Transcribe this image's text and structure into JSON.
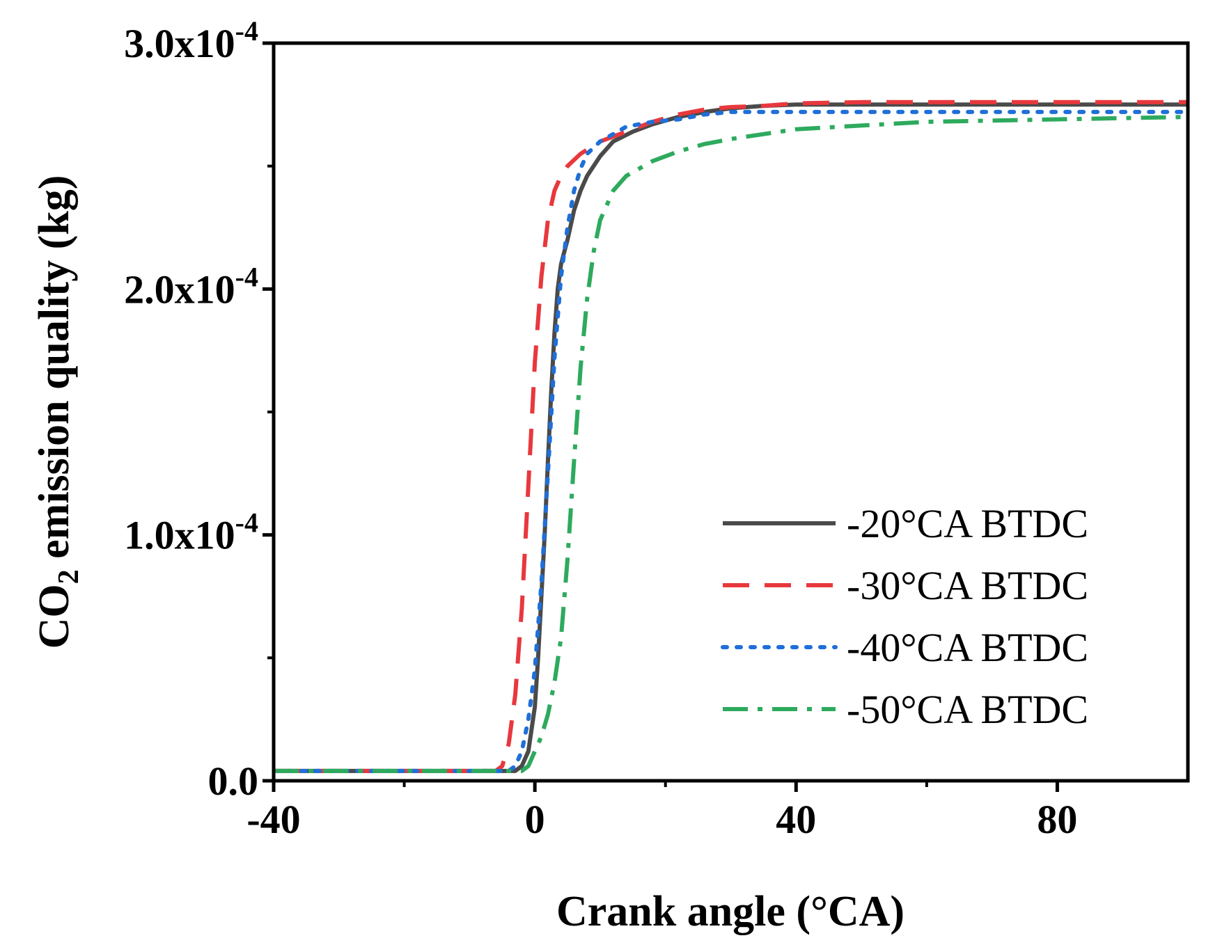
{
  "chart_data": {
    "type": "line",
    "xlabel": "Crank angle (°CA)",
    "ylabel_main": "CO",
    "ylabel_sub": "2",
    "ylabel_rest": " emission quality (kg)",
    "xlim": [
      -40,
      100
    ],
    "ylim": [
      0,
      0.0003
    ],
    "x_ticks": [
      {
        "value": -40,
        "label": "-40"
      },
      {
        "value": 0,
        "label": "0"
      },
      {
        "value": 40,
        "label": "40"
      },
      {
        "value": 80,
        "label": "80"
      }
    ],
    "x_minor_ticks": [
      -20,
      20,
      60
    ],
    "y_ticks": [
      {
        "value": 0,
        "label": "0.0",
        "mantissa": "",
        "exponent": ""
      },
      {
        "value": 0.0001,
        "label": "1.0x10",
        "mantissa": "1.0x10",
        "exponent": "-4"
      },
      {
        "value": 0.0002,
        "label": "2.0x10",
        "mantissa": "2.0x10",
        "exponent": "-4"
      },
      {
        "value": 0.0003,
        "label": "3.0x10",
        "mantissa": "3.0x10",
        "exponent": "-4"
      }
    ],
    "y_minor_ticks": [
      5e-05,
      0.00015,
      0.00025
    ],
    "legend_position": "lower-right",
    "series": [
      {
        "name": "-20°CA BTDC",
        "color": "#4a4a4a",
        "dash": "solid",
        "x": [
          -40,
          -5,
          -3,
          -2,
          -1,
          0,
          0.5,
          1,
          1.5,
          2,
          2.5,
          3,
          3.5,
          4,
          4.5,
          5,
          6,
          7,
          8,
          10,
          12,
          15,
          18,
          22,
          26,
          30,
          35,
          40,
          60,
          80,
          100
        ],
        "y": [
          4e-06,
          4e-06,
          4e-06,
          6e-06,
          1.2e-05,
          3e-05,
          5e-05,
          7.5e-05,
          0.0001,
          0.00013,
          0.000158,
          0.000182,
          0.0002,
          0.00021,
          0.000215,
          0.00022,
          0.000232,
          0.00024,
          0.000246,
          0.000254,
          0.00026,
          0.000264,
          0.000267,
          0.00027,
          0.000272,
          0.0002735,
          0.0002745,
          0.000275,
          0.000275,
          0.000275,
          0.000275
        ]
      },
      {
        "name": "-30°CA BTDC",
        "color": "#e8383d",
        "dash": "dashed",
        "x": [
          -40,
          -6,
          -5,
          -4,
          -3,
          -2,
          -1,
          0,
          1,
          2,
          3,
          4,
          5,
          7,
          10,
          14,
          18,
          22,
          26,
          30,
          35,
          40,
          50,
          60,
          80,
          100
        ],
        "y": [
          4e-06,
          4e-06,
          6e-06,
          1.5e-05,
          3.5e-05,
          7e-05,
          0.00012,
          0.00017,
          0.000205,
          0.000228,
          0.00024,
          0.000246,
          0.00025,
          0.000255,
          0.00026,
          0.000264,
          0.000268,
          0.000271,
          0.000273,
          0.000274,
          0.0002745,
          0.0002755,
          0.000276,
          0.000276,
          0.000276,
          0.000276
        ]
      },
      {
        "name": "-40°CA BTDC",
        "color": "#1f6fd8",
        "dash": "dotted",
        "x": [
          -40,
          -4,
          -3,
          -2,
          -1,
          0,
          1,
          2,
          3,
          4,
          5,
          6,
          7,
          8,
          10,
          14,
          18,
          22,
          26,
          30,
          40,
          60,
          80,
          100
        ],
        "y": [
          4e-06,
          4e-06,
          6e-06,
          1.2e-05,
          2.5e-05,
          4.5e-05,
          8e-05,
          0.000125,
          0.000172,
          0.000205,
          0.000225,
          0.00024,
          0.000249,
          0.000255,
          0.00026,
          0.000266,
          0.000268,
          0.000269,
          0.000271,
          0.000272,
          0.000272,
          0.000272,
          0.000272,
          0.000272
        ]
      },
      {
        "name": "-50°CA BTDC",
        "color": "#2eaa5e",
        "dash": "dashdot",
        "x": [
          -40,
          -2,
          -1,
          0,
          1,
          2,
          3,
          4,
          5,
          6,
          7,
          8,
          9,
          10,
          12,
          14,
          18,
          22,
          26,
          30,
          40,
          60,
          80,
          100
        ],
        "y": [
          4e-06,
          4e-06,
          6e-06,
          1.2e-05,
          1.8e-05,
          2.7e-05,
          4e-05,
          5.8e-05,
          9e-05,
          0.00013,
          0.000168,
          0.000196,
          0.000215,
          0.000228,
          0.00024,
          0.000246,
          0.000252,
          0.000256,
          0.000259,
          0.000261,
          0.000265,
          0.000268,
          0.000269,
          0.00027
        ]
      }
    ]
  }
}
